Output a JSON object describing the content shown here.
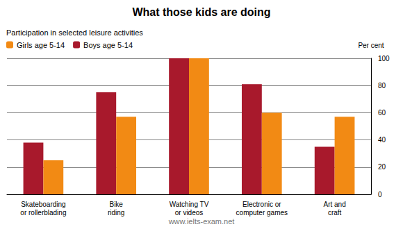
{
  "chart_data": {
    "type": "bar",
    "title": "What those kids are doing",
    "subtitle": "Participation in selected leisure activities",
    "ylabel": "Per cent",
    "annotations": [
      "www.ielts-exam.net"
    ],
    "categories": [
      "Skateboarding\nor rollerblading",
      "Bike\nriding",
      "Watching TV\nor videos",
      "Electronic or\ncomputer games",
      "Art and\ncraft"
    ],
    "series": [
      {
        "name": "Boys age 5-14",
        "color": "#a8192c",
        "values": [
          38,
          75,
          100,
          81,
          35
        ]
      },
      {
        "name": "Girls age 5-14",
        "color": "#f28a14",
        "values": [
          25,
          57,
          100,
          60,
          57
        ]
      }
    ],
    "ylim": [
      0,
      100
    ],
    "yticks": [
      0,
      20,
      40,
      60,
      80,
      100
    ],
    "grid": true,
    "legend": "top-left"
  }
}
